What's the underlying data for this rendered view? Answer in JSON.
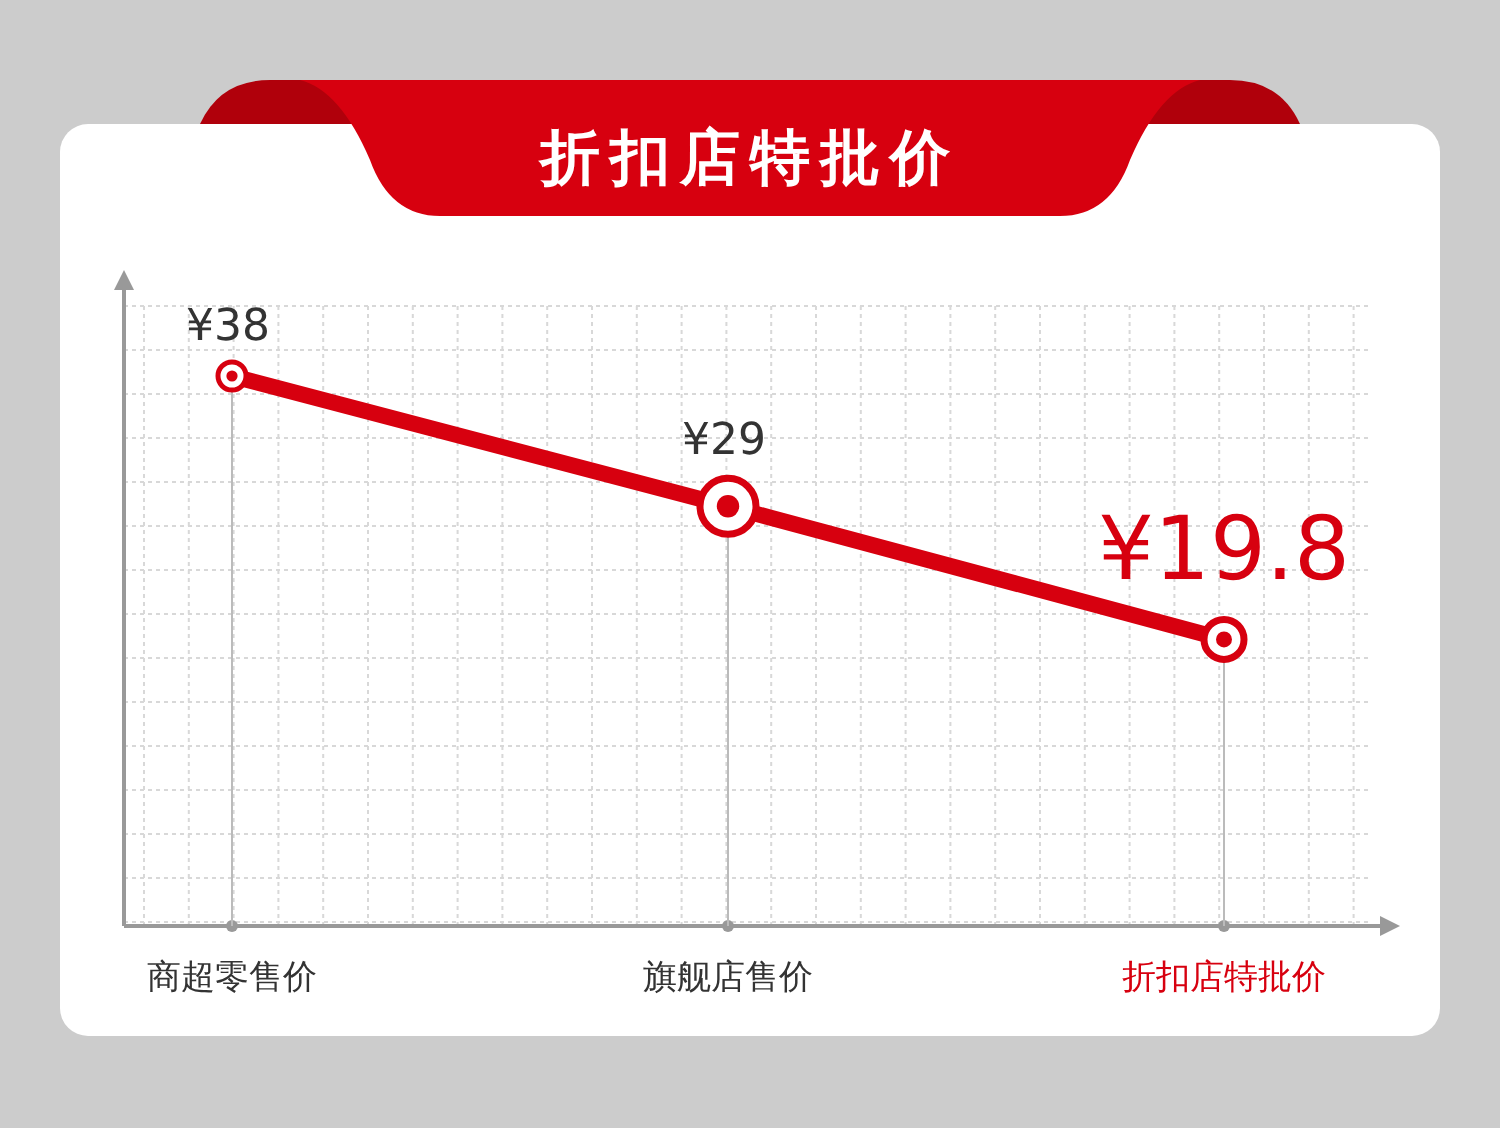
{
  "chart_data": {
    "type": "line",
    "title": "折扣店特批价",
    "categories": [
      "商超零售价",
      "旗舰店售价",
      "折扣店特批价"
    ],
    "series": [
      {
        "color": "#d7000f",
        "values": [
          38,
          29,
          19.8
        ],
        "value_labels": [
          "¥38",
          "¥29",
          "¥19.8"
        ]
      }
    ],
    "grid": true,
    "marker": "circle",
    "tick_labels": "x"
  }
}
